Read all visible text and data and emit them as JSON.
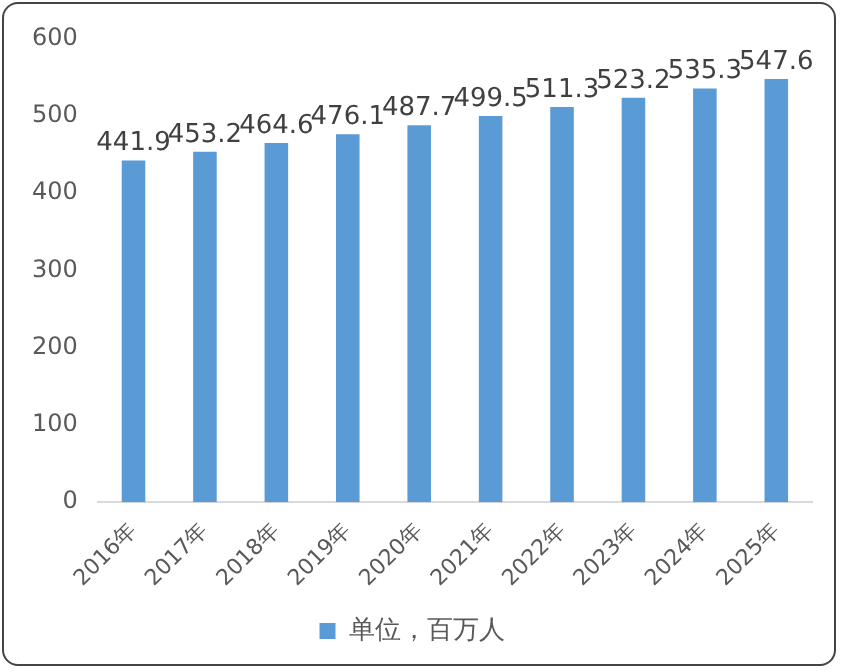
{
  "chart_data": {
    "type": "bar",
    "categories": [
      "2016年",
      "2017年",
      "2018年",
      "2019年",
      "2020年",
      "2021年",
      "2022年",
      "2023年",
      "2024年",
      "2025年"
    ],
    "series": [
      {
        "name": "单位，百万人",
        "color": "#5b9bd5",
        "values": [
          441.9,
          453.2,
          464.6,
          476.1,
          487.7,
          499.5,
          511.3,
          523.2,
          535.3,
          547.6
        ]
      }
    ],
    "ylim": [
      0,
      600
    ],
    "yticks": [
      0,
      100,
      200,
      300,
      400,
      500,
      600
    ],
    "grid": false,
    "legend": "bottom",
    "data_labels": true
  }
}
